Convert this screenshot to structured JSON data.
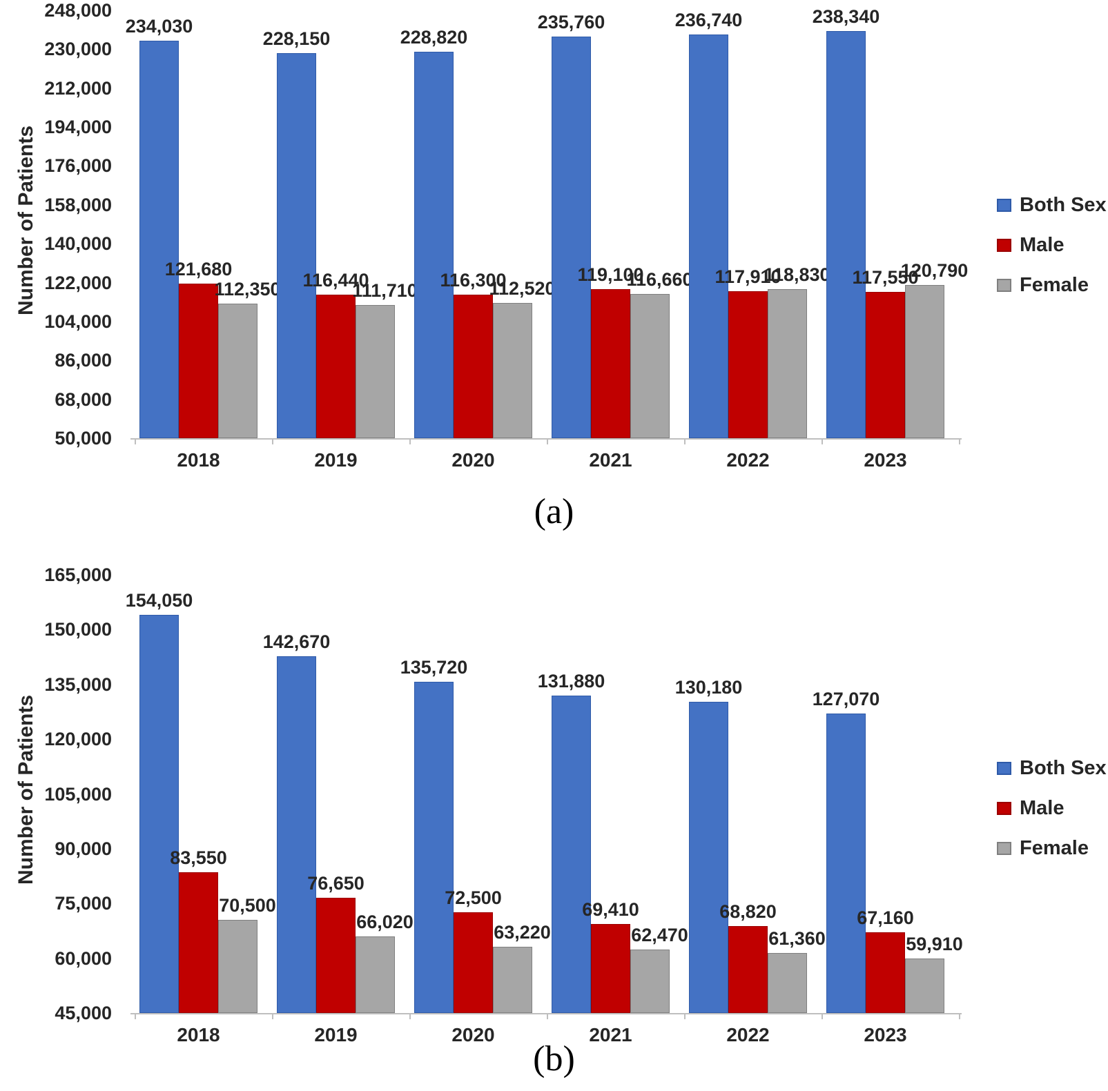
{
  "figure": {
    "captions": {
      "a": "(a)",
      "b": "(b)"
    }
  },
  "chart_data": [
    {
      "type": "bar",
      "panel": "a",
      "title": "",
      "xlabel": "",
      "ylabel": "Number of Patients",
      "categories": [
        "2018",
        "2019",
        "2020",
        "2021",
        "2022",
        "2023"
      ],
      "y_axis": {
        "min": 50000,
        "max": 248000,
        "tick_step": 18000,
        "ticks": [
          "248,000",
          "230,000",
          "212,000",
          "194,000",
          "176,000",
          "158,000",
          "140,000",
          "122,000",
          "104,000",
          "86,000",
          "68,000",
          "50,000"
        ]
      },
      "grid": false,
      "legend_position": "right",
      "series": [
        {
          "name": "Both Sex",
          "color": "#4472C4",
          "border_color": "#2E5AA8",
          "values": [
            234030,
            228150,
            228820,
            235760,
            236740,
            238340
          ],
          "labels": [
            "234,030",
            "228,150",
            "228,820",
            "235,760",
            "236,740",
            "238,340"
          ]
        },
        {
          "name": "Male",
          "color": "#C00000",
          "border_color": "#9B0000",
          "values": [
            121680,
            116440,
            116300,
            119100,
            117910,
            117550
          ],
          "labels": [
            "121,680",
            "116,440",
            "116,300",
            "119,100",
            "117,910",
            "117,550"
          ]
        },
        {
          "name": "Female",
          "color": "#A6A6A6",
          "border_color": "#7F7F7F",
          "values": [
            112350,
            111710,
            112520,
            116660,
            118830,
            120790
          ],
          "labels": [
            "112,350",
            "111,710",
            "112,520",
            "116,660",
            "118,830",
            "120,790"
          ]
        }
      ]
    },
    {
      "type": "bar",
      "panel": "b",
      "title": "",
      "xlabel": "",
      "ylabel": "Number of Patients",
      "categories": [
        "2018",
        "2019",
        "2020",
        "2021",
        "2022",
        "2023"
      ],
      "y_axis": {
        "min": 45000,
        "max": 165000,
        "tick_step": 15000,
        "ticks": [
          "165,000",
          "150,000",
          "135,000",
          "120,000",
          "105,000",
          "90,000",
          "75,000",
          "60,000",
          "45,000"
        ]
      },
      "grid": false,
      "legend_position": "right",
      "series": [
        {
          "name": "Both Sex",
          "color": "#4472C4",
          "border_color": "#2E5AA8",
          "values": [
            154050,
            142670,
            135720,
            131880,
            130180,
            127070
          ],
          "labels": [
            "154,050",
            "142,670",
            "135,720",
            "131,880",
            "130,180",
            "127,070"
          ]
        },
        {
          "name": "Male",
          "color": "#C00000",
          "border_color": "#9B0000",
          "values": [
            83550,
            76650,
            72500,
            69410,
            68820,
            67160
          ],
          "labels": [
            "83,550",
            "76,650",
            "72,500",
            "69,410",
            "68,820",
            "67,160"
          ]
        },
        {
          "name": "Female",
          "color": "#A6A6A6",
          "border_color": "#7F7F7F",
          "values": [
            70500,
            66020,
            63220,
            62470,
            61360,
            59910
          ],
          "labels": [
            "70,500",
            "66,020",
            "63,220",
            "62,470",
            "61,360",
            "59,910"
          ]
        }
      ]
    }
  ]
}
